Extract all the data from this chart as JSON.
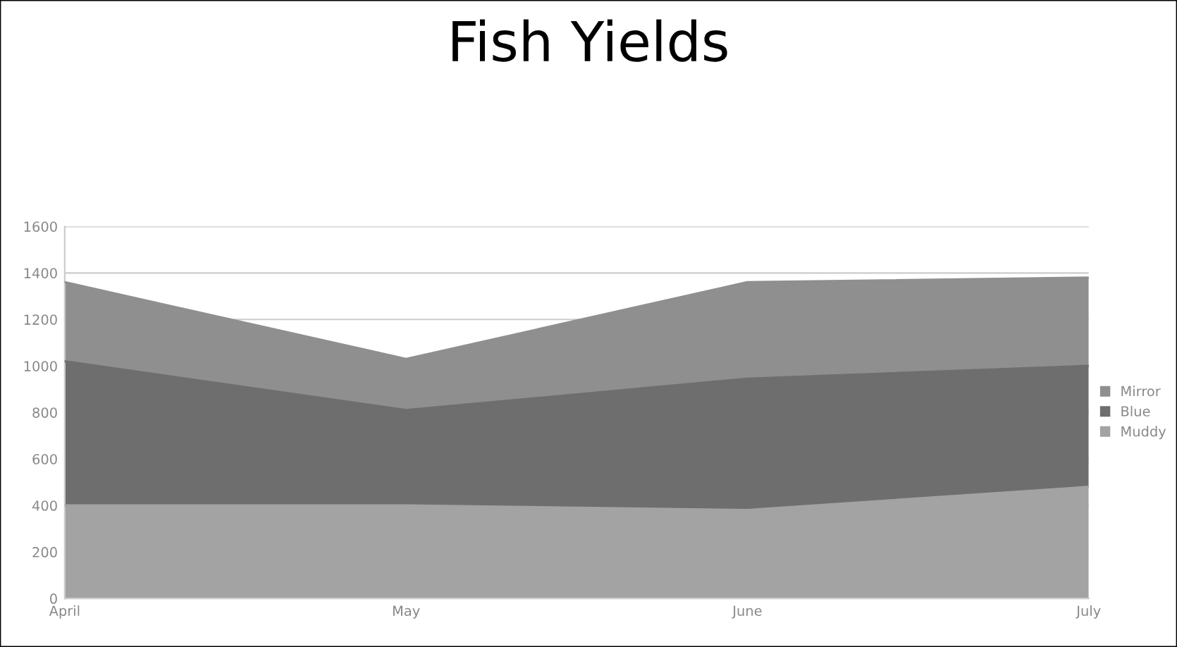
{
  "chart_data": {
    "type": "area",
    "stacked": true,
    "title": "Fish Yields",
    "categories": [
      "April",
      "May",
      "June",
      "July"
    ],
    "series": [
      {
        "name": "Muddy",
        "color": "#a3a3a3",
        "values": [
          400,
          400,
          380,
          480
        ]
      },
      {
        "name": "Blue",
        "color": "#6e6e6e",
        "values": [
          620,
          410,
          565,
          520
        ]
      },
      {
        "name": "Mirror",
        "color": "#8f8f8f",
        "values": [
          340,
          220,
          415,
          380
        ]
      }
    ],
    "ylim": [
      0,
      1600
    ],
    "yticks": [
      0,
      200,
      400,
      600,
      800,
      1000,
      1200,
      1400,
      1600
    ],
    "grid": "y",
    "legend": "right"
  }
}
